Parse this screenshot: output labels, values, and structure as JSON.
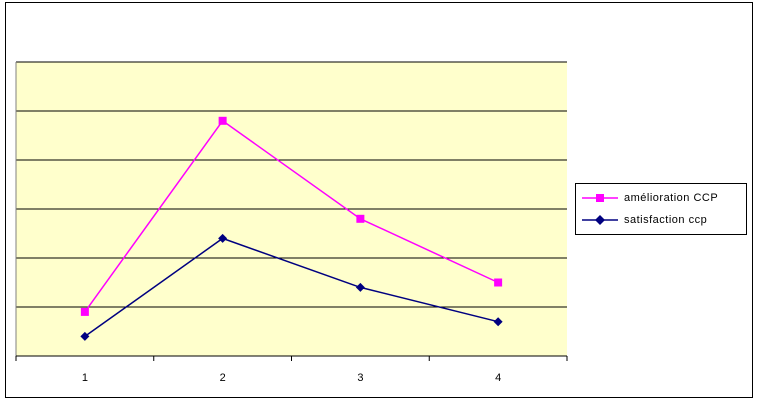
{
  "chart_data": {
    "type": "line",
    "categories": [
      "1",
      "2",
      "3",
      "4"
    ],
    "series": [
      {
        "name": "amélioration CCP",
        "values": [
          0.9,
          4.8,
          2.8,
          1.5
        ],
        "color": "#ff00ff",
        "marker": "square"
      },
      {
        "name": "satisfaction ccp",
        "values": [
          0.4,
          2.4,
          1.4,
          0.7
        ],
        "color": "#000080",
        "marker": "diamond"
      }
    ],
    "ylim": [
      0,
      6
    ],
    "grid": true,
    "legend_position": "right",
    "plot_background": "#ffffcc"
  }
}
